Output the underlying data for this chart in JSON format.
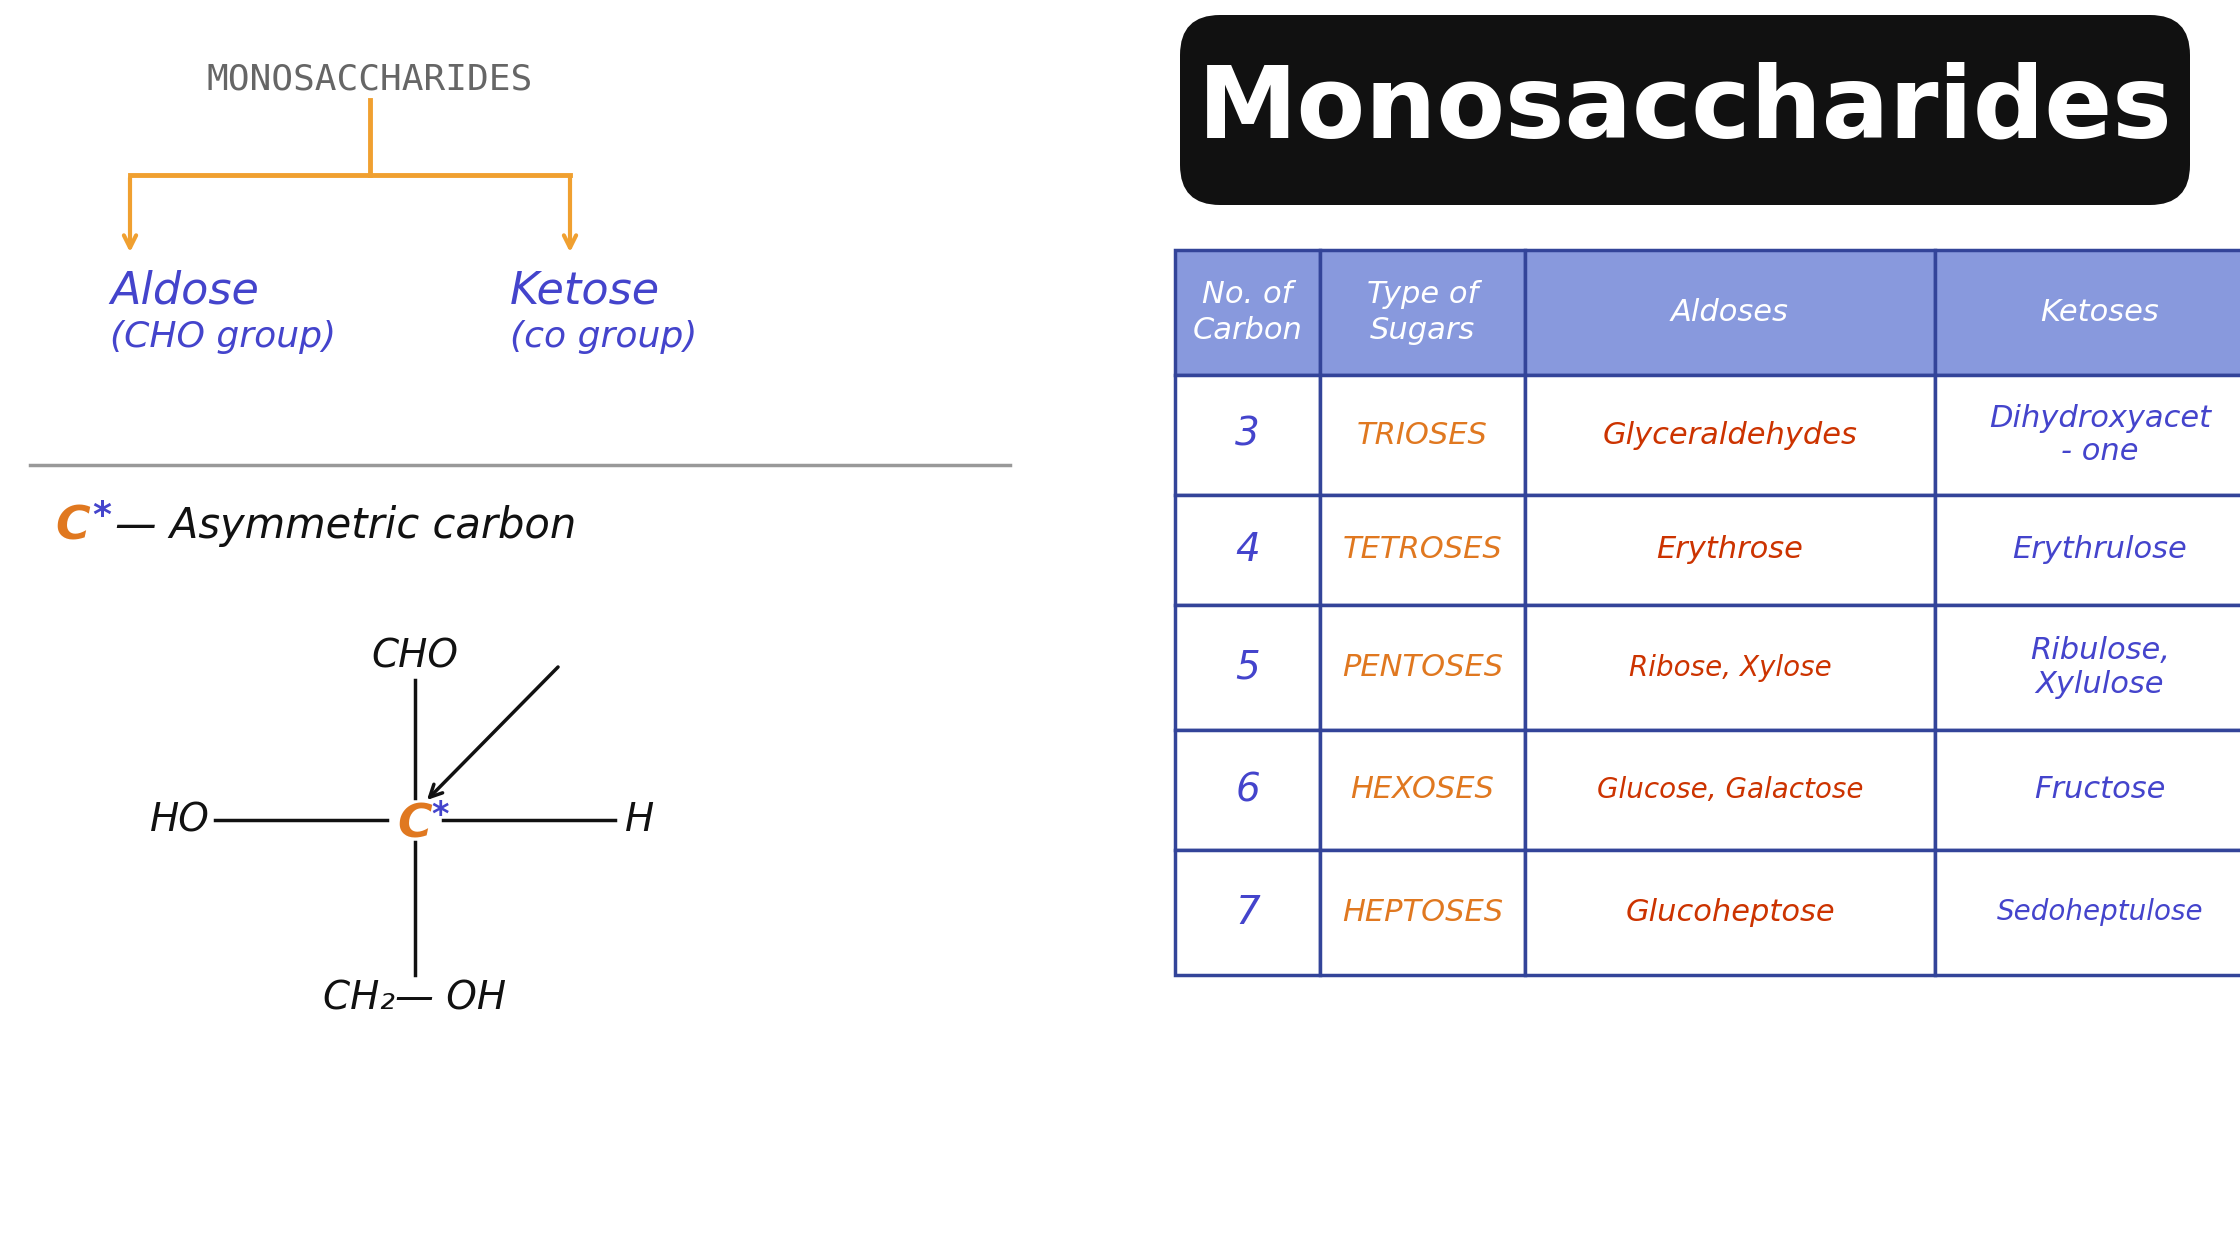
{
  "bg_color": "#ffffff",
  "title_box_text": "Monosaccharides",
  "title_box_bg": "#111111",
  "title_box_fg": "#ffffff",
  "mono_label": "MONOSACCHARIDES",
  "mono_label_color": "#666666",
  "branch_color": "#f0a030",
  "branch_text_color": "#4444cc",
  "table_header_bg": "#8899dd",
  "table_border_color": "#334499",
  "col_headers": [
    "No. of\nCarbon",
    "Type of\nSugars",
    "Aldoses",
    "Ketoses"
  ],
  "rows": [
    [
      "3",
      "TRIOSES",
      "Glyceraldehydes",
      "Dihydroxyacet\n- one"
    ],
    [
      "4",
      "TETROSES",
      "Erythrose",
      "Erythrulose"
    ],
    [
      "5",
      "PENTOSES",
      "Ribose, Xylose",
      "Ribulose,\nXylulose"
    ],
    [
      "6",
      "HEXOSES",
      "Glucose, Galactose",
      "Fructose"
    ],
    [
      "7",
      "HEPTOSES",
      "Glucoheptose",
      "Sedoheptulose"
    ]
  ],
  "row_num_color": "#4444cc",
  "row_type_color": "#e07820",
  "row_aldose_color": "#cc3300",
  "row_ketose_color": "#4444cc",
  "c_star_color": "#e07820",
  "star_color": "#4444cc",
  "struct_color": "#111111",
  "sep_color": "#999999"
}
